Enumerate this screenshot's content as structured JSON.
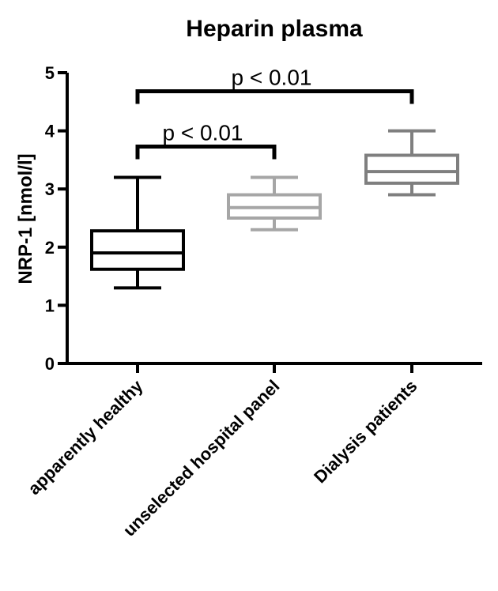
{
  "chart_data": {
    "type": "box",
    "title": "Heparin plasma",
    "xlabel": "",
    "ylabel": "NRP-1 [nmol/l]",
    "ylim": [
      0,
      5
    ],
    "yticks": [
      "0",
      "1",
      "2",
      "3",
      "4",
      "5"
    ],
    "categories": [
      "apparently healthy",
      "unselected hospital panel",
      "Dialysis patients"
    ],
    "boxes": [
      {
        "min": 1.3,
        "q1": 1.62,
        "median": 1.9,
        "q3": 2.28,
        "max": 3.2,
        "color": "#000000"
      },
      {
        "min": 2.3,
        "q1": 2.5,
        "median": 2.68,
        "q3": 2.9,
        "max": 3.2,
        "color": "#a6a6a6"
      },
      {
        "min": 2.9,
        "q1": 3.1,
        "median": 3.3,
        "q3": 3.58,
        "max": 4.0,
        "color": "#7f7f7f"
      }
    ],
    "significance": [
      {
        "from": 0,
        "to": 1,
        "y": 3.73,
        "label": "p < 0.01"
      },
      {
        "from": 0,
        "to": 2,
        "y": 4.68,
        "label": "p < 0.01"
      }
    ],
    "grid": false,
    "legend": "none"
  }
}
